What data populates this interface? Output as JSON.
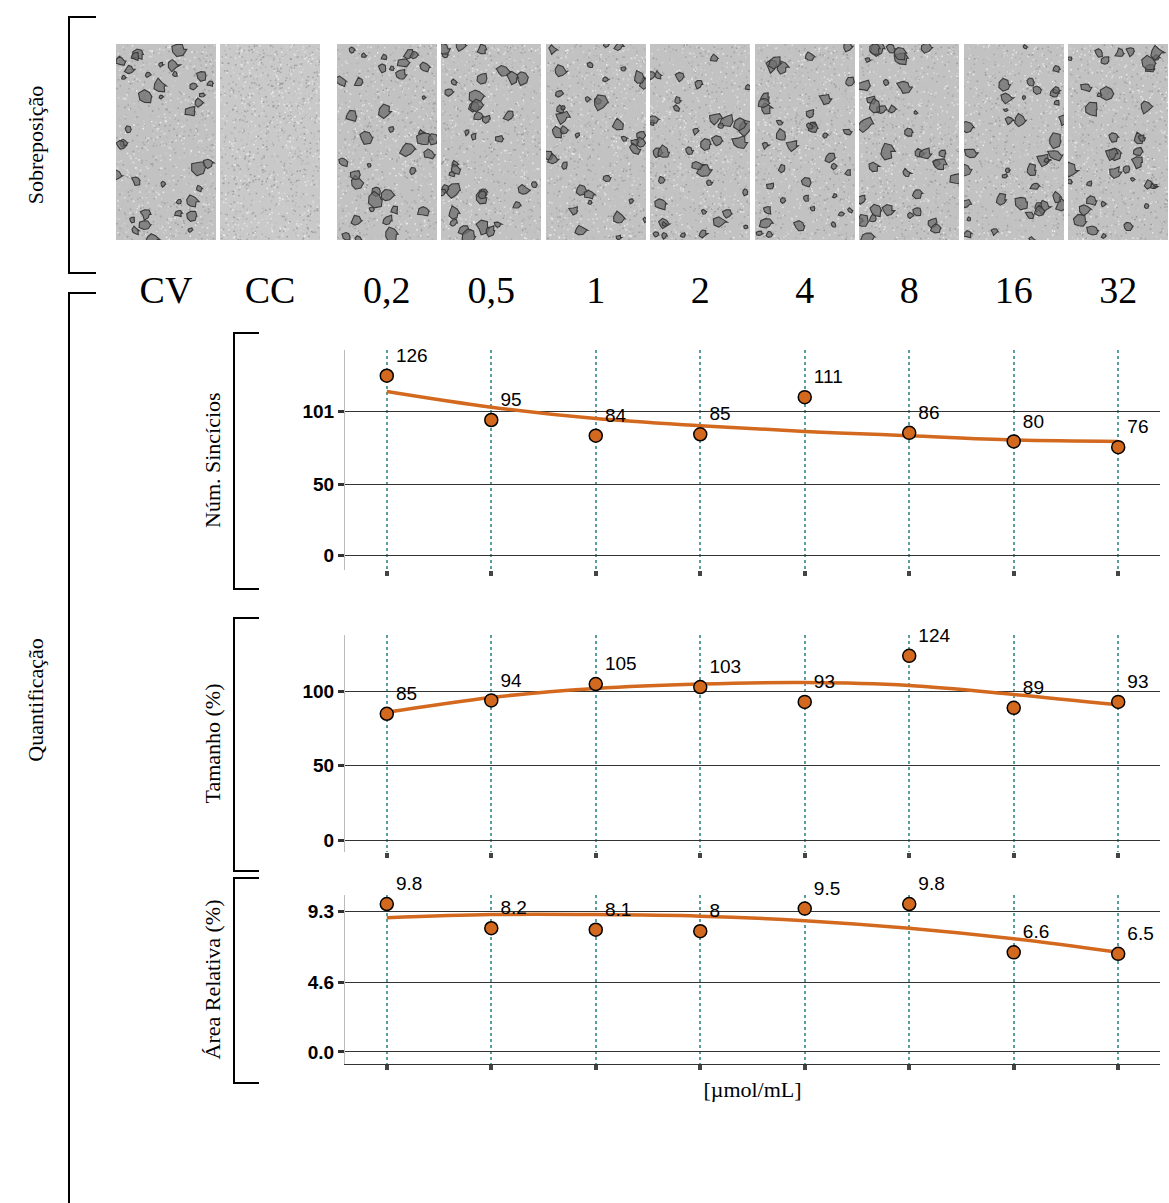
{
  "overlay": {
    "title": "Sobreposição",
    "controls": [
      "CV",
      "CC"
    ]
  },
  "quantification_title": "Quantificação",
  "chart_data": [
    {
      "type": "scatter",
      "ylabel": "Núm. Sincícios",
      "categories": [
        "0,2",
        "0,5",
        "1",
        "2",
        "4",
        "8",
        "16",
        "32"
      ],
      "series": [
        {
          "type": "scatter",
          "marker": "circle",
          "color": "#d2691e",
          "values": [
            126,
            95,
            84,
            85,
            111,
            86,
            80,
            76
          ]
        },
        {
          "type": "line",
          "line_style": "solid",
          "color": "#d2691e",
          "values": [
            115,
            104,
            96,
            91,
            87,
            84,
            81,
            80
          ]
        }
      ],
      "ylim": [
        -10,
        144
      ],
      "yticks": [
        0,
        50,
        101
      ],
      "grid": true,
      "data_labels": true,
      "tick_labels": "y"
    },
    {
      "type": "scatter",
      "ylabel": "Tamanho (%)",
      "categories": [
        "0,2",
        "0,5",
        "1",
        "2",
        "4",
        "8",
        "16",
        "32"
      ],
      "series": [
        {
          "type": "scatter",
          "marker": "circle",
          "color": "#d2691e",
          "values": [
            85,
            94,
            105,
            103,
            93,
            124,
            89,
            93
          ]
        },
        {
          "type": "line",
          "line_style": "solid",
          "color": "#d2691e",
          "values": [
            86,
            96,
            102,
            105,
            106,
            104,
            98,
            91
          ]
        }
      ],
      "ylim": [
        -8,
        138
      ],
      "yticks": [
        0,
        50,
        100
      ],
      "grid": true,
      "data_labels": true,
      "tick_labels": "y"
    },
    {
      "type": "scatter",
      "ylabel": "Área Relativa (%)",
      "xlabel": "[µmol/mL]",
      "categories": [
        "0,2",
        "0,5",
        "1",
        "2",
        "4",
        "8",
        "16",
        "32"
      ],
      "series": [
        {
          "type": "scatter",
          "marker": "circle",
          "color": "#d2691e",
          "values": [
            9.8,
            8.2,
            8.1,
            8,
            9.5,
            9.8,
            6.6,
            6.5
          ]
        },
        {
          "type": "line",
          "line_style": "solid",
          "color": "#d2691e",
          "values": [
            8.9,
            9.1,
            9.1,
            9.0,
            8.7,
            8.2,
            7.5,
            6.6
          ]
        }
      ],
      "ylim": [
        -0.8,
        10.4
      ],
      "yticks": [
        {
          "value": 0,
          "label": "0.0"
        },
        4.6,
        9.3
      ],
      "grid": true,
      "data_labels": true,
      "tick_labels": "y"
    }
  ]
}
